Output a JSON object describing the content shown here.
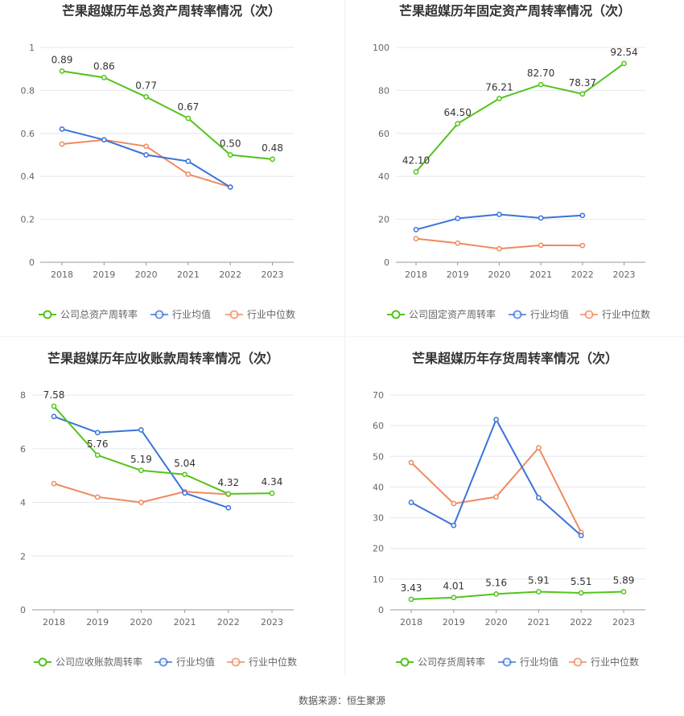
{
  "source_label": "数据来源：恒生聚源",
  "colors": {
    "company": "#52c41a",
    "industry_avg": "#3a73d9",
    "industry_median": "#ef8a5f",
    "grid": "#e6e6f0",
    "axis": "#999999",
    "text": "#666666",
    "title": "#333333"
  },
  "chart_data": [
    {
      "type": "line",
      "title": "芒果超媒历年总资产周转率情况（次）",
      "categories": [
        "2018",
        "2019",
        "2020",
        "2021",
        "2022",
        "2023"
      ],
      "ylim": [
        0,
        1
      ],
      "yticks": [
        0,
        0.2,
        0.4,
        0.6,
        0.8,
        1
      ],
      "series": [
        {
          "name": "公司总资产周转率",
          "key": "company",
          "values": [
            0.89,
            0.86,
            0.77,
            0.67,
            0.5,
            0.48
          ],
          "labels": [
            "0.89",
            "0.86",
            "0.77",
            "0.67",
            "0.50",
            "0.48"
          ]
        },
        {
          "name": "行业均值",
          "key": "industry_avg",
          "values": [
            0.62,
            0.57,
            0.5,
            0.47,
            0.35,
            null
          ]
        },
        {
          "name": "行业中位数",
          "key": "industry_median",
          "values": [
            0.55,
            0.57,
            0.54,
            0.41,
            0.35,
            null
          ]
        }
      ]
    },
    {
      "type": "line",
      "title": "芒果超媒历年固定资产周转率情况（次）",
      "categories": [
        "2018",
        "2019",
        "2020",
        "2021",
        "2022",
        "2023"
      ],
      "ylim": [
        0,
        100
      ],
      "yticks": [
        0,
        20,
        40,
        60,
        80,
        100
      ],
      "series": [
        {
          "name": "公司固定资产周转率",
          "key": "company",
          "values": [
            42.1,
            64.5,
            76.21,
            82.7,
            78.37,
            92.54
          ],
          "labels": [
            "42.10",
            "64.50",
            "76.21",
            "82.70",
            "78.37",
            "92.54"
          ]
        },
        {
          "name": "行业均值",
          "key": "industry_avg",
          "values": [
            15.2,
            20.4,
            22.3,
            20.6,
            21.8,
            null
          ]
        },
        {
          "name": "行业中位数",
          "key": "industry_median",
          "values": [
            11.0,
            8.9,
            6.3,
            7.9,
            7.8,
            null
          ]
        }
      ]
    },
    {
      "type": "line",
      "title": "芒果超媒历年应收账款周转率情况（次）",
      "categories": [
        "2018",
        "2019",
        "2020",
        "2021",
        "2022",
        "2023"
      ],
      "ylim": [
        0,
        8
      ],
      "yticks": [
        0,
        2,
        4,
        6,
        8
      ],
      "series": [
        {
          "name": "公司应收账款周转率",
          "key": "company",
          "values": [
            7.58,
            5.76,
            5.19,
            5.04,
            4.32,
            4.34
          ],
          "labels": [
            "7.58",
            "5.76",
            "5.19",
            "5.04",
            "4.32",
            "4.34"
          ]
        },
        {
          "name": "行业均值",
          "key": "industry_avg",
          "values": [
            7.2,
            6.6,
            6.7,
            4.35,
            3.8,
            null
          ]
        },
        {
          "name": "行业中位数",
          "key": "industry_median",
          "values": [
            4.7,
            4.2,
            4.0,
            4.4,
            4.3,
            null
          ]
        }
      ]
    },
    {
      "type": "line",
      "title": "芒果超媒历年存货周转率情况（次）",
      "categories": [
        "2018",
        "2019",
        "2020",
        "2021",
        "2022",
        "2023"
      ],
      "ylim": [
        0,
        70
      ],
      "yticks": [
        0,
        10,
        20,
        30,
        40,
        50,
        60,
        70
      ],
      "series": [
        {
          "name": "公司存货周转率",
          "key": "company",
          "values": [
            3.43,
            4.01,
            5.16,
            5.91,
            5.51,
            5.89
          ],
          "labels": [
            "3.43",
            "4.01",
            "5.16",
            "5.91",
            "5.51",
            "5.89"
          ]
        },
        {
          "name": "行业均值",
          "key": "industry_avg",
          "values": [
            35,
            27.5,
            62,
            36.5,
            24.2,
            null
          ]
        },
        {
          "name": "行业中位数",
          "key": "industry_median",
          "values": [
            48,
            34.6,
            36.8,
            52.8,
            25.2,
            null
          ]
        }
      ]
    }
  ]
}
